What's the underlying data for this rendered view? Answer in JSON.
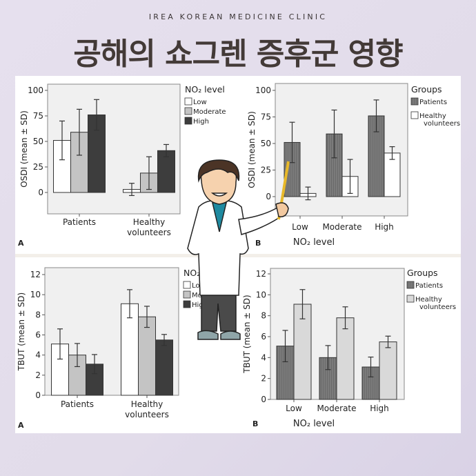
{
  "header": {
    "brand": "IREA KOREAN MEDICINE CLINIC",
    "title": "공해의 쇼그렌 증후군 영향"
  },
  "chart_data": [
    {
      "type": "bar",
      "panel": "A",
      "ylabel": "OSDI (mean ± SD)",
      "xlabel": "",
      "ylim": [
        -21,
        105
      ],
      "yticks": [
        0,
        25,
        50,
        75,
        100
      ],
      "categories": [
        "Patients",
        "Healthy volunteers"
      ],
      "legend_title": "NO₂ level",
      "legend_placement": "right",
      "series": [
        {
          "name": "Low",
          "color": "#ffffff",
          "values": [
            51,
            3
          ],
          "sd": [
            19,
            6
          ]
        },
        {
          "name": "Moderate",
          "color": "#c4c4c4",
          "values": [
            59,
            19
          ],
          "sd": [
            22.5,
            16
          ]
        },
        {
          "name": "High",
          "color": "#3d3d3d",
          "values": [
            76,
            41
          ],
          "sd": [
            15,
            6
          ]
        }
      ]
    },
    {
      "type": "bar",
      "panel": "B",
      "ylabel": "OSDI (mean ± SD)",
      "xlabel": "NO₂ level",
      "ylim": [
        -18,
        106
      ],
      "yticks": [
        0,
        25,
        50,
        75,
        100
      ],
      "categories": [
        "Low",
        "Moderate",
        "High"
      ],
      "legend_title": "Groups",
      "legend_placement": "right",
      "series": [
        {
          "name": "Patients",
          "color": "#7b7b7b",
          "values": [
            51,
            59,
            76
          ],
          "sd": [
            19,
            22.5,
            15
          ]
        },
        {
          "name": "Healthy volunteers",
          "color": "#ffffff",
          "values": [
            3,
            19,
            41
          ],
          "sd": [
            6,
            16,
            6
          ]
        }
      ]
    },
    {
      "type": "bar",
      "panel": "A",
      "ylabel": "TBUT (mean ± SD)",
      "xlabel": "",
      "ylim": [
        0,
        12.6
      ],
      "yticks": [
        0,
        2,
        4,
        6,
        8,
        10,
        12
      ],
      "categories": [
        "Patients",
        "Healthy volunteers"
      ],
      "legend_title": "NO₂ level",
      "legend_placement": "right",
      "series": [
        {
          "name": "Low",
          "color": "#ffffff",
          "values": [
            5.1,
            9.1
          ],
          "sd": [
            1.5,
            1.4
          ]
        },
        {
          "name": "Moderate",
          "color": "#c4c4c4",
          "values": [
            4.0,
            7.8
          ],
          "sd": [
            1.15,
            1.05
          ]
        },
        {
          "name": "High",
          "color": "#3d3d3d",
          "values": [
            3.1,
            5.5
          ],
          "sd": [
            0.95,
            0.55
          ]
        }
      ]
    },
    {
      "type": "bar",
      "panel": "B",
      "ylabel": "TBUT (mean ± SD)",
      "xlabel": "NO₂ level",
      "ylim": [
        0,
        12.6
      ],
      "yticks": [
        0,
        2,
        4,
        6,
        8,
        10,
        12
      ],
      "categories": [
        "Low",
        "Moderate",
        "High"
      ],
      "legend_title": "Groups",
      "legend_placement": "right",
      "series": [
        {
          "name": "Patients",
          "color": "#7b7b7b",
          "values": [
            5.1,
            4.0,
            3.1
          ],
          "sd": [
            1.5,
            1.15,
            0.95
          ]
        },
        {
          "name": "Healthy volunteers",
          "color": "#d9d9d9",
          "values": [
            9.1,
            7.8,
            5.5
          ],
          "sd": [
            1.4,
            1.05,
            0.55
          ]
        }
      ]
    }
  ],
  "colors": {
    "plot_background": "#f0f0f0",
    "axis": "#555555",
    "doctor_coat": "#ffffff",
    "doctor_shirt": "#1f8aa0",
    "pointer": "#e8b92a"
  },
  "illustration": {
    "icon": "doctor-with-pointer-icon"
  }
}
